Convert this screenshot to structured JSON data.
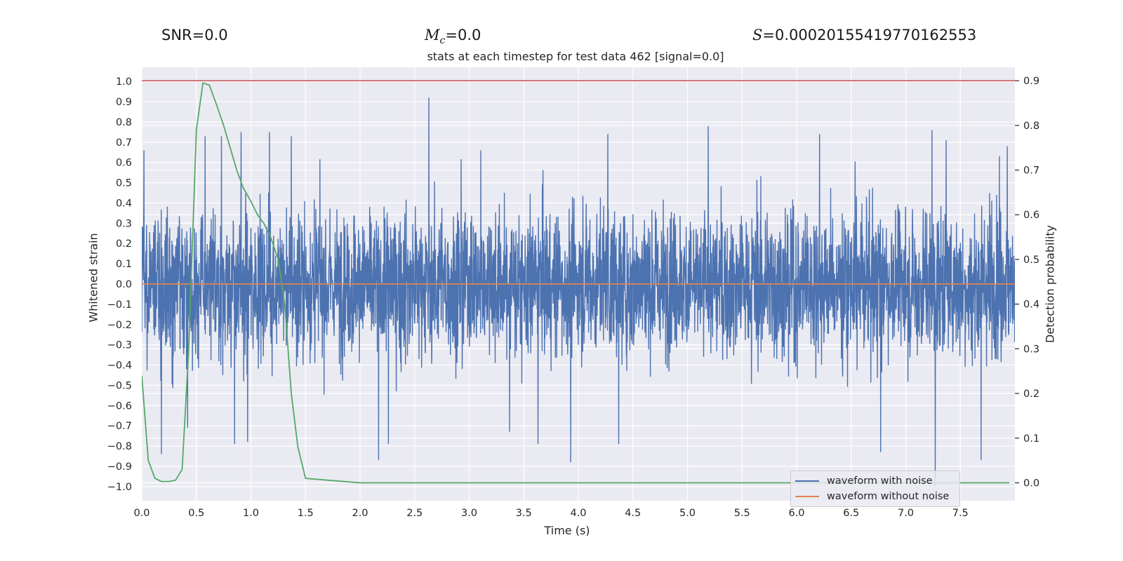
{
  "header": {
    "snr": "SNR=0.0",
    "mc_symbol": "M",
    "mc_sub": "c",
    "mc_value": "=0.0",
    "s_symbol": "S",
    "s_value": "=0.00020155419770162553"
  },
  "chart_data": {
    "type": "line",
    "title": "stats at each timestep for test data 462 [signal=0.0]",
    "xlabel": "Time (s)",
    "ylabel": "Whitened strain",
    "y2label": "Detection probability",
    "xlim": [
      0.0,
      8.0
    ],
    "ylim": [
      -1.07,
      1.07
    ],
    "y2lim": [
      -0.04,
      0.93
    ],
    "xticks": [
      0.0,
      0.5,
      1.0,
      1.5,
      2.0,
      2.5,
      3.0,
      3.5,
      4.0,
      4.5,
      5.0,
      5.5,
      6.0,
      6.5,
      7.0,
      7.5
    ],
    "yticks": [
      -1.0,
      -0.9,
      -0.8,
      -0.7,
      -0.6,
      -0.5,
      -0.4,
      -0.3,
      -0.2,
      -0.1,
      0.0,
      0.1,
      0.2,
      0.3,
      0.4,
      0.5,
      0.6,
      0.7,
      0.8,
      0.9,
      1.0
    ],
    "y2ticks": [
      0.0,
      0.1,
      0.2,
      0.3,
      0.4,
      0.5,
      0.6,
      0.7,
      0.8,
      0.9
    ],
    "grid": true,
    "legend": [
      "waveform with noise",
      "waveform without noise"
    ],
    "legend_position": "lower-right",
    "colors": {
      "noise": "#4c72b0",
      "clean": "#dd8452",
      "probability": "#55a868",
      "threshold": "#c44e52",
      "background": "#eaeaf2",
      "grid": "#ffffff"
    },
    "series": [
      {
        "name": "waveform with noise",
        "axis": "left",
        "note": "dense whitened noise; typical envelope about +/-0.45 with peaks listed below",
        "envelope": [
          0.45,
          -0.45
        ],
        "peaks": [
          {
            "x": 0.18,
            "y": 0.74
          },
          {
            "x": 0.18,
            "y": -0.84
          },
          {
            "x": 0.42,
            "y": -0.71
          },
          {
            "x": 0.58,
            "y": 0.73
          },
          {
            "x": 0.73,
            "y": 0.73
          },
          {
            "x": 0.85,
            "y": -0.79
          },
          {
            "x": 0.91,
            "y": 0.75
          },
          {
            "x": 0.97,
            "y": -0.78
          },
          {
            "x": 1.17,
            "y": 0.75
          },
          {
            "x": 1.37,
            "y": 0.73
          },
          {
            "x": 2.17,
            "y": -0.87
          },
          {
            "x": 2.26,
            "y": -0.79
          },
          {
            "x": 2.63,
            "y": 0.92
          },
          {
            "x": 3.37,
            "y": -0.73
          },
          {
            "x": 3.63,
            "y": -0.79
          },
          {
            "x": 3.93,
            "y": -0.88
          },
          {
            "x": 4.27,
            "y": 0.74
          },
          {
            "x": 4.37,
            "y": -0.79
          },
          {
            "x": 5.19,
            "y": 0.78
          },
          {
            "x": 6.21,
            "y": 0.74
          },
          {
            "x": 6.77,
            "y": 0.74
          },
          {
            "x": 6.77,
            "y": -0.83
          },
          {
            "x": 7.24,
            "y": 0.76
          },
          {
            "x": 7.27,
            "y": -1.0
          },
          {
            "x": 7.37,
            "y": 0.71
          },
          {
            "x": 7.69,
            "y": -0.87
          },
          {
            "x": 7.93,
            "y": 0.68
          }
        ]
      },
      {
        "name": "waveform without noise",
        "axis": "left",
        "x": [
          0.0,
          8.0
        ],
        "y": [
          0.0,
          0.0
        ]
      },
      {
        "name": "detection probability",
        "axis": "right",
        "x": [
          0.0,
          0.06,
          0.12,
          0.18,
          0.25,
          0.31,
          0.37,
          0.43,
          0.5,
          0.56,
          0.62,
          0.68,
          0.75,
          0.81,
          0.87,
          0.93,
          1.0,
          1.06,
          1.12,
          1.18,
          1.25,
          1.31,
          1.37,
          1.43,
          1.5,
          2.0,
          3.0,
          4.0,
          5.0,
          6.0,
          7.0,
          7.95
        ],
        "y": [
          0.24,
          0.05,
          0.01,
          0.003,
          0.003,
          0.006,
          0.03,
          0.3,
          0.79,
          0.895,
          0.89,
          0.85,
          0.8,
          0.75,
          0.7,
          0.66,
          0.63,
          0.6,
          0.58,
          0.55,
          0.5,
          0.4,
          0.2,
          0.08,
          0.01,
          0.0,
          0.0,
          0.0,
          0.0,
          0.0,
          0.0,
          0.0
        ]
      },
      {
        "name": "threshold",
        "axis": "right",
        "x": [
          0.0,
          8.0
        ],
        "y": [
          0.9,
          0.9
        ]
      }
    ]
  }
}
